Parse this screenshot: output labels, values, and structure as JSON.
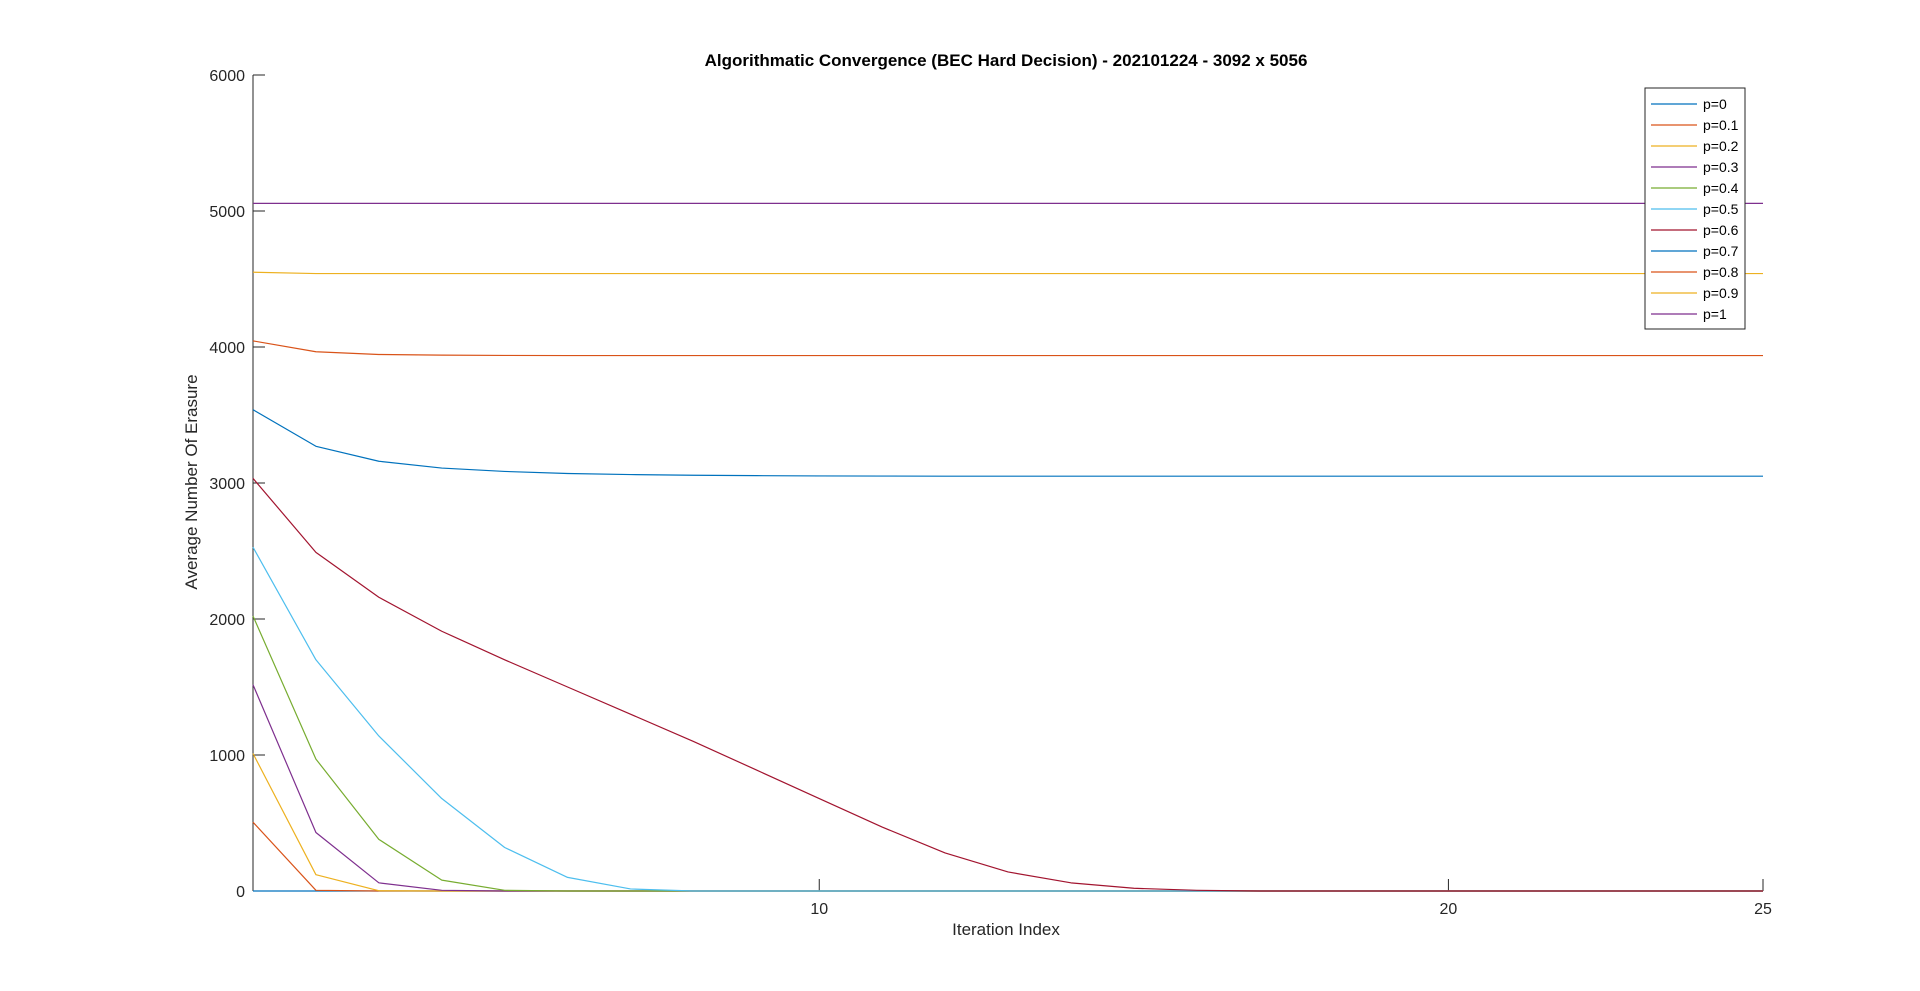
{
  "chart_data": {
    "type": "line",
    "title": "Algorithmatic Convergence (BEC Hard Decision) - 202101224 - 3092 x 5056",
    "xlabel": "Iteration Index",
    "ylabel": "Average Number Of Erasure",
    "xlim": [
      1,
      25
    ],
    "ylim": [
      0,
      6000
    ],
    "xticks": [
      10,
      20,
      25
    ],
    "yticks": [
      0,
      1000,
      2000,
      3000,
      4000,
      5000,
      6000
    ],
    "grid": false,
    "legend_position": "top-right",
    "x": [
      1,
      2,
      3,
      4,
      5,
      6,
      7,
      8,
      9,
      10,
      11,
      12,
      13,
      14,
      15,
      16,
      17,
      18,
      19,
      20,
      21,
      22,
      23,
      24,
      25
    ],
    "series": [
      {
        "name": "p=0",
        "color": "#0072BD",
        "values": [
          0,
          0,
          0,
          0,
          0,
          0,
          0,
          0,
          0,
          0,
          0,
          0,
          0,
          0,
          0,
          0,
          0,
          0,
          0,
          0,
          0,
          0,
          0,
          0,
          0
        ]
      },
      {
        "name": "p=0.1",
        "color": "#D95319",
        "values": [
          506,
          5,
          0,
          0,
          0,
          0,
          0,
          0,
          0,
          0,
          0,
          0,
          0,
          0,
          0,
          0,
          0,
          0,
          0,
          0,
          0,
          0,
          0,
          0,
          0
        ]
      },
      {
        "name": "p=0.2",
        "color": "#EDB120",
        "values": [
          1011,
          120,
          2,
          0,
          0,
          0,
          0,
          0,
          0,
          0,
          0,
          0,
          0,
          0,
          0,
          0,
          0,
          0,
          0,
          0,
          0,
          0,
          0,
          0,
          0
        ]
      },
      {
        "name": "p=0.3",
        "color": "#7E2F8E",
        "values": [
          1517,
          430,
          60,
          5,
          0,
          0,
          0,
          0,
          0,
          0,
          0,
          0,
          0,
          0,
          0,
          0,
          0,
          0,
          0,
          0,
          0,
          0,
          0,
          0,
          0
        ]
      },
      {
        "name": "p=0.4",
        "color": "#77AC30",
        "values": [
          2022,
          970,
          380,
          80,
          5,
          0,
          0,
          0,
          0,
          0,
          0,
          0,
          0,
          0,
          0,
          0,
          0,
          0,
          0,
          0,
          0,
          0,
          0,
          0,
          0
        ]
      },
      {
        "name": "p=0.5",
        "color": "#4DBEEE",
        "values": [
          2528,
          1700,
          1140,
          680,
          320,
          100,
          15,
          0,
          0,
          0,
          0,
          0,
          0,
          0,
          0,
          0,
          0,
          0,
          0,
          0,
          0,
          0,
          0,
          0,
          0
        ]
      },
      {
        "name": "p=0.6",
        "color": "#A2142F",
        "values": [
          3034,
          2490,
          2160,
          1910,
          1700,
          1500,
          1300,
          1100,
          890,
          680,
          470,
          280,
          140,
          60,
          20,
          5,
          0,
          0,
          0,
          0,
          0,
          0,
          0,
          0,
          0
        ]
      },
      {
        "name": "p=0.7",
        "color": "#0072BD",
        "values": [
          3539,
          3270,
          3160,
          3110,
          3085,
          3070,
          3062,
          3057,
          3054,
          3052,
          3051,
          3050,
          3050,
          3050,
          3050,
          3050,
          3050,
          3050,
          3050,
          3050,
          3050,
          3050,
          3050,
          3050,
          3050
        ]
      },
      {
        "name": "p=0.8",
        "color": "#D95319",
        "values": [
          4045,
          3965,
          3945,
          3940,
          3938,
          3937,
          3937,
          3937,
          3937,
          3937,
          3937,
          3937,
          3937,
          3937,
          3937,
          3937,
          3937,
          3937,
          3937,
          3937,
          3937,
          3937,
          3937,
          3937,
          3937
        ]
      },
      {
        "name": "p=0.9",
        "color": "#EDB120",
        "values": [
          4550,
          4540,
          4540,
          4540,
          4540,
          4540,
          4540,
          4540,
          4540,
          4540,
          4540,
          4540,
          4540,
          4540,
          4540,
          4540,
          4540,
          4540,
          4540,
          4540,
          4540,
          4540,
          4540,
          4540,
          4540
        ]
      },
      {
        "name": "p=1",
        "color": "#7E2F8E",
        "values": [
          5056,
          5056,
          5056,
          5056,
          5056,
          5056,
          5056,
          5056,
          5056,
          5056,
          5056,
          5056,
          5056,
          5056,
          5056,
          5056,
          5056,
          5056,
          5056,
          5056,
          5056,
          5056,
          5056,
          5056,
          5056
        ]
      }
    ]
  }
}
